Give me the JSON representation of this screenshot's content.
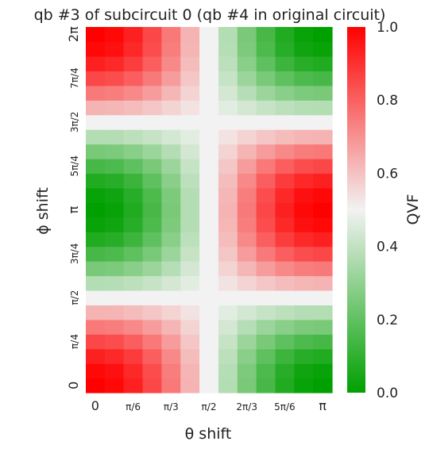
{
  "chart_data": {
    "type": "heatmap",
    "title": "qb #3 of subcircuit 0 (qb #4 in original circuit)",
    "xlabel": "θ shift",
    "ylabel": "ϕ shift",
    "xticks": [
      "0",
      "π/6",
      "π/3",
      "π/2",
      "2π/3",
      "5π/6",
      "π"
    ],
    "yticks": [
      "0",
      "π/4",
      "π/2",
      "3π/4",
      "π",
      "5π/4",
      "3π/2",
      "7π/4",
      "2π"
    ],
    "colorbar_label": "QVF",
    "colorbar_ticks": [
      "0.0",
      "0.2",
      "0.4",
      "0.6",
      "0.8",
      "1.0"
    ],
    "clim": [
      0,
      1
    ],
    "colormap": [
      "#00a000",
      "#f2f2f2",
      "#ff0000"
    ],
    "grid_shape": [
      25,
      13
    ],
    "x_range": [
      0,
      3.14159
    ],
    "y_range": [
      0,
      6.28318
    ],
    "formula": "0.5 + 0.5*cos(theta)*cos(phi)"
  }
}
